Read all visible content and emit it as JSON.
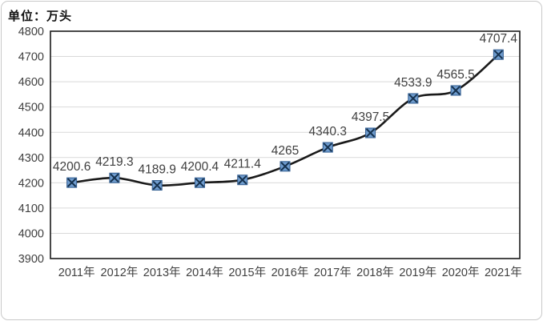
{
  "chart_data": {
    "type": "line",
    "unit_label": "单位：万头",
    "categories": [
      "2011年",
      "2012年",
      "2013年",
      "2014年",
      "2015年",
      "2016年",
      "2017年",
      "2018年",
      "2019年",
      "2020年",
      "2021年"
    ],
    "values": [
      4200.6,
      4219.3,
      4189.9,
      4200.4,
      4211.4,
      4265,
      4340.3,
      4397.5,
      4533.9,
      4565.5,
      4707.4
    ],
    "point_labels": [
      "4200.6",
      "4219.3",
      "4189.9",
      "4200.4",
      "4211.4",
      "4265",
      "4340.3",
      "4397.5",
      "4533.9",
      "4565.5",
      "4707.4"
    ],
    "y_ticks": [
      3900,
      4000,
      4100,
      4200,
      4300,
      4400,
      4500,
      4600,
      4700,
      4800
    ],
    "ylim": [
      3900,
      4800
    ],
    "xlabel": "",
    "ylabel": "",
    "grid": true,
    "legend": "none",
    "smooth": true,
    "marker": "square-x",
    "colors": {
      "line": "#1a1a1a",
      "marker_fill": "#6f9cce",
      "marker_stroke": "#2f5b8f",
      "marker_x": "#16324f",
      "gridline": "#d9d9d9",
      "plot_border": "#1a1a1a",
      "axis_label": "#404040",
      "data_label": "#3f3f3f",
      "chart_border": "#c9c9c9",
      "background": "#ffffff"
    }
  }
}
